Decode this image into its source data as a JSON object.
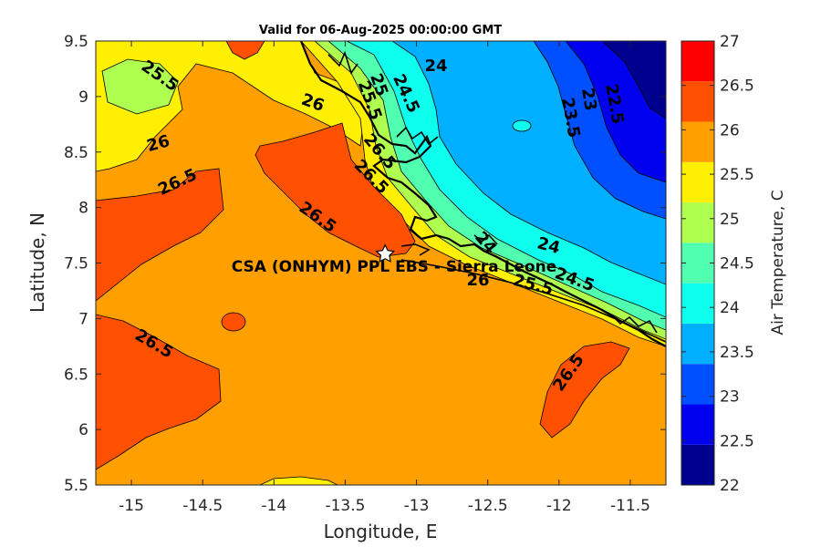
{
  "title": "Valid for 06-Aug-2025 00:00:00 GMT",
  "site_label": "CSA (ONHYM) PPL EBS  - Sierra Leone",
  "site_marker": {
    "lon": -13.22,
    "lat": 7.58
  },
  "x_axis": {
    "label": "Longitude, E",
    "range": [
      -15.25,
      -11.25
    ],
    "ticks": [
      "-15",
      "-14.5",
      "-14",
      "-13.5",
      "-13",
      "-12.5",
      "-12",
      "-11.5"
    ]
  },
  "y_axis": {
    "label": "Latitude, N",
    "range": [
      5.5,
      9.5
    ],
    "ticks": [
      "5.5",
      "6",
      "6.5",
      "7",
      "7.5",
      "8",
      "8.5",
      "9",
      "9.5"
    ]
  },
  "colorbar": {
    "label": "Air Temperature, C",
    "ticks": [
      "22",
      "22.5",
      "23",
      "23.5",
      "24",
      "24.5",
      "25",
      "25.5",
      "26",
      "26.5",
      "27"
    ],
    "colors": [
      "#00008f",
      "#0000ef",
      "#0050ff",
      "#00afff",
      "#0fffef",
      "#50ffaf",
      "#afff50",
      "#ffef00",
      "#ffa000",
      "#ff5000",
      "#ff0000"
    ]
  },
  "contour_labels": [
    "25.5",
    "26",
    "26.5",
    "26.5",
    "26.5",
    "26.5",
    "26",
    "25.5",
    "25",
    "24.5",
    "24",
    "24",
    "23.5",
    "23",
    "22.5",
    "24",
    "24.5",
    "25.5",
    "26",
    "26.5",
    "26.5"
  ],
  "marker_icon": "star-icon"
}
